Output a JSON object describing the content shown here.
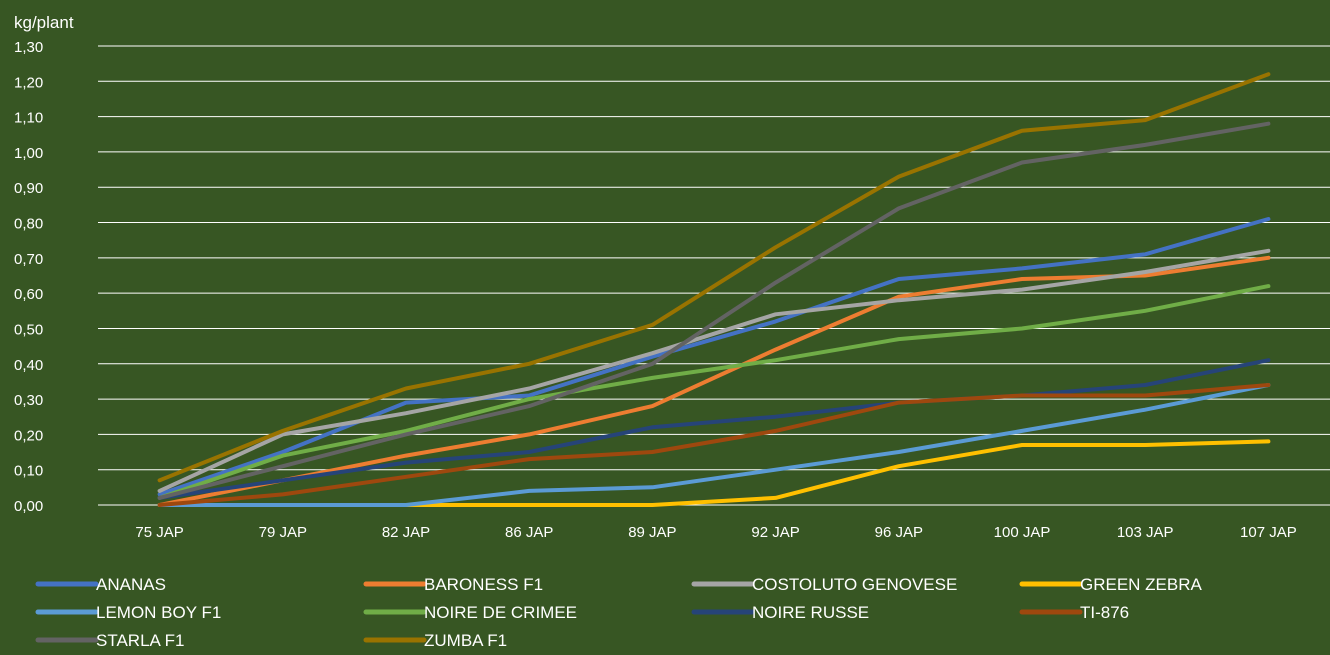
{
  "chart_data": {
    "type": "line",
    "ylabel": "kg/plant",
    "ylim": [
      0,
      1.3
    ],
    "yticks": [
      "0,00",
      "0,10",
      "0,20",
      "0,30",
      "0,40",
      "0,50",
      "0,60",
      "0,70",
      "0,80",
      "0,90",
      "1,00",
      "1,10",
      "1,20",
      "1,30"
    ],
    "categories": [
      "75 JAP",
      "79 JAP",
      "82 JAP",
      "86 JAP",
      "89 JAP",
      "92 JAP",
      "96 JAP",
      "100 JAP",
      "103 JAP",
      "107 JAP"
    ],
    "grid": true,
    "legend_position": "bottom",
    "background": "#375623",
    "series": [
      {
        "name": "ANANAS",
        "color": "#4472C4",
        "values": [
          0.03,
          0.15,
          0.29,
          0.31,
          0.42,
          0.52,
          0.64,
          0.67,
          0.71,
          0.81
        ]
      },
      {
        "name": "BARONESS F1",
        "color": "#ED7D31",
        "values": [
          0.0,
          0.07,
          0.14,
          0.2,
          0.28,
          0.44,
          0.59,
          0.64,
          0.65,
          0.7
        ]
      },
      {
        "name": "COSTOLUTO GENOVESE",
        "color": "#A5A5A5",
        "values": [
          0.04,
          0.2,
          0.26,
          0.33,
          0.43,
          0.54,
          0.58,
          0.61,
          0.66,
          0.72
        ]
      },
      {
        "name": "GREEN ZEBRA",
        "color": "#FFC000",
        "values": [
          0.0,
          0.0,
          0.0,
          0.0,
          0.0,
          0.02,
          0.11,
          0.17,
          0.17,
          0.18
        ]
      },
      {
        "name": "LEMON BOY F1",
        "color": "#5B9BD5",
        "values": [
          0.0,
          0.0,
          0.0,
          0.04,
          0.05,
          0.1,
          0.15,
          0.21,
          0.27,
          0.34
        ]
      },
      {
        "name": "NOIRE DE CRIMEE",
        "color": "#70AD47",
        "values": [
          0.02,
          0.14,
          0.21,
          0.3,
          0.36,
          0.41,
          0.47,
          0.5,
          0.55,
          0.62
        ]
      },
      {
        "name": "NOIRE RUSSE",
        "color": "#264478",
        "values": [
          0.02,
          0.07,
          0.12,
          0.15,
          0.22,
          0.25,
          0.29,
          0.31,
          0.34,
          0.41
        ]
      },
      {
        "name": "TI-876",
        "color": "#9E480E",
        "values": [
          0.0,
          0.03,
          0.08,
          0.13,
          0.15,
          0.21,
          0.29,
          0.31,
          0.31,
          0.34
        ]
      },
      {
        "name": "STARLA F1",
        "color": "#636363",
        "values": [
          0.02,
          0.11,
          0.2,
          0.28,
          0.4,
          0.63,
          0.84,
          0.97,
          1.02,
          1.08
        ]
      },
      {
        "name": "ZUMBA F1",
        "color": "#997300",
        "values": [
          0.07,
          0.21,
          0.33,
          0.4,
          0.51,
          0.73,
          0.93,
          1.06,
          1.09,
          1.22
        ]
      }
    ]
  }
}
